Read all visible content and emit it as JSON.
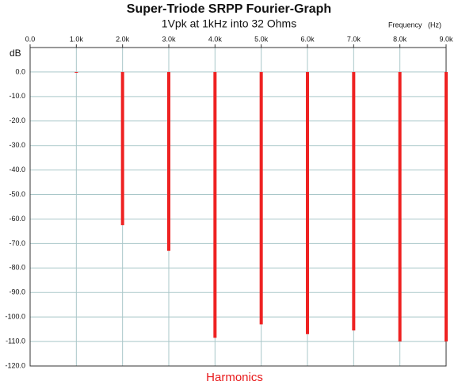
{
  "chart_data": {
    "type": "bar",
    "title": "Super-Triode SRPP Fourier-Graph",
    "subtitle": "1Vpk at 1kHz into 32 Ohms",
    "x_label": "Frequency   (Hz)",
    "y_label": "dB",
    "annotation": "Harmonics",
    "x": [
      1000,
      2000,
      3000,
      4000,
      5000,
      6000,
      7000,
      8000,
      9000
    ],
    "values": [
      0,
      -62.5,
      -73,
      -108.5,
      -103,
      -107,
      -105.5,
      -110,
      -110
    ],
    "color": "#ee2222",
    "xlim": [
      0,
      9000
    ],
    "xticks": [
      {
        "value": 0,
        "label": "0.0"
      },
      {
        "value": 1000,
        "label": "1.0k"
      },
      {
        "value": 2000,
        "label": "2.0k"
      },
      {
        "value": 3000,
        "label": "3.0k"
      },
      {
        "value": 4000,
        "label": "4.0k"
      },
      {
        "value": 5000,
        "label": "5.0k"
      },
      {
        "value": 6000,
        "label": "6.0k"
      },
      {
        "value": 7000,
        "label": "7.0k"
      },
      {
        "value": 8000,
        "label": "8.0k"
      },
      {
        "value": 9000,
        "label": "9.0k"
      }
    ],
    "ylim": [
      -120,
      10
    ],
    "yticks": [
      {
        "value": 0,
        "label": "0.0"
      },
      {
        "value": -10,
        "label": "-10.0"
      },
      {
        "value": -20,
        "label": "-20.0"
      },
      {
        "value": -30,
        "label": "-30.0"
      },
      {
        "value": -40,
        "label": "-40.0"
      },
      {
        "value": -50,
        "label": "-50.0"
      },
      {
        "value": -60,
        "label": "-60.0"
      },
      {
        "value": -70,
        "label": "-70.0"
      },
      {
        "value": -80,
        "label": "-80.0"
      },
      {
        "value": -90,
        "label": "-90.0"
      },
      {
        "value": -100,
        "label": "-100.0"
      },
      {
        "value": -110,
        "label": "-110.0"
      },
      {
        "value": -120,
        "label": "-120.0"
      }
    ],
    "grid": true
  }
}
